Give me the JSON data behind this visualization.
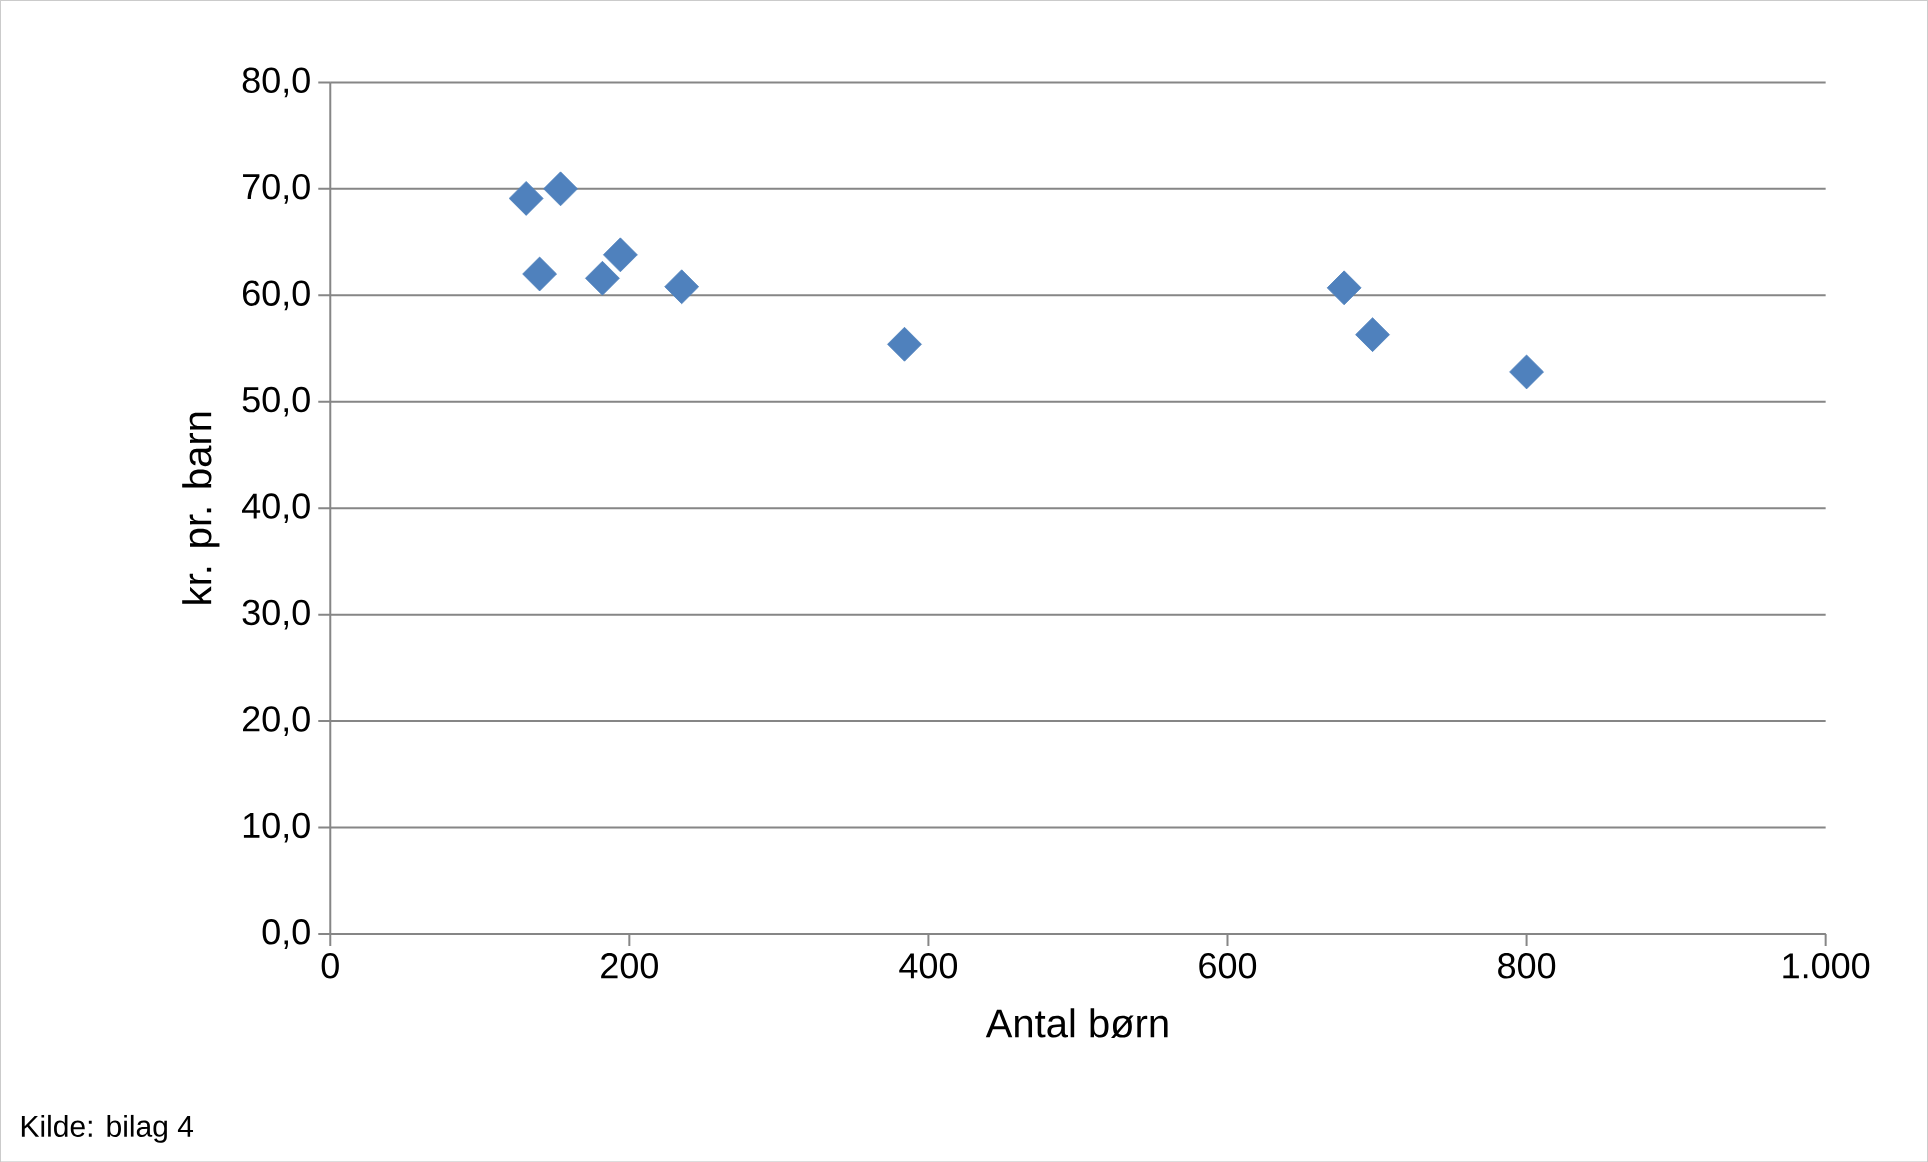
{
  "chart_data": {
    "type": "scatter",
    "xlabel": "Antal børn",
    "ylabel": "kr. pr. barn",
    "annotations": [
      "Kilde: bilag 4"
    ],
    "x": [
      131,
      154,
      140,
      182,
      194,
      235,
      384,
      678,
      697,
      800
    ],
    "series": [
      {
        "color": "#4f81bd",
        "values": [
          69.1,
          70.0,
          62.0,
          61.6,
          63.8,
          60.8,
          55.4,
          60.7,
          56.3,
          52.8
        ]
      }
    ],
    "xlim": [
      0,
      1000
    ],
    "xticks": [
      0,
      200,
      400,
      600,
      800,
      {
        "value": 1000,
        "label": "1.000"
      }
    ],
    "ylim": [
      0,
      80
    ],
    "yticks": [
      {
        "value": 0,
        "label": "0,0"
      },
      {
        "value": 10,
        "label": "10,0"
      },
      {
        "value": 20,
        "label": "20,0"
      },
      {
        "value": 30,
        "label": "30,0"
      },
      {
        "value": 40,
        "label": "40,0"
      },
      {
        "value": 50,
        "label": "50,0"
      },
      {
        "value": 60,
        "label": "60,0"
      },
      {
        "value": 70,
        "label": "70,0"
      },
      {
        "value": 80,
        "label": "80,0"
      }
    ],
    "grid": "y",
    "marker": "diamond"
  }
}
